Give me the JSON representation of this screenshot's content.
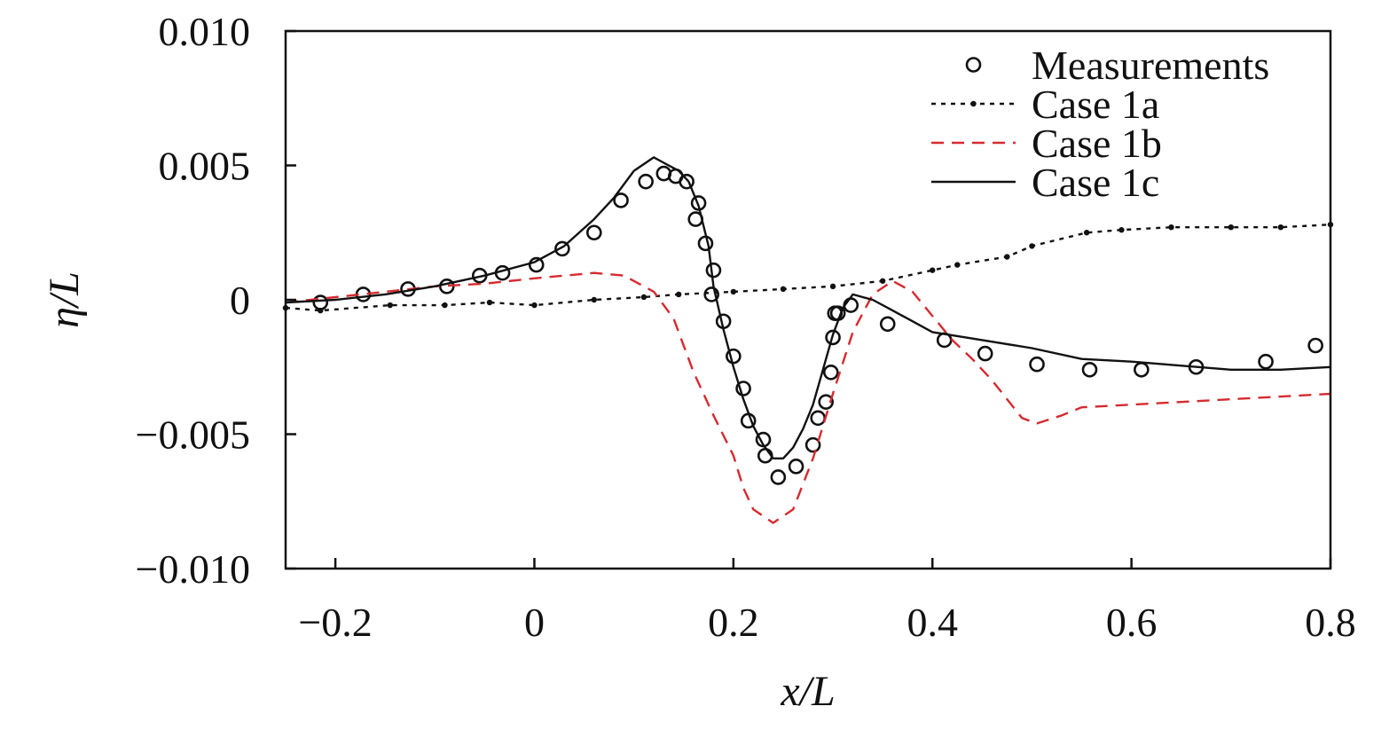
{
  "chart_data": {
    "type": "line",
    "title": "",
    "xlabel": "x/L",
    "ylabel": "η/L",
    "xlim": [
      -0.25,
      0.8
    ],
    "ylim": [
      -0.01,
      0.01
    ],
    "x_ticks": [
      -0.2,
      0,
      0.2,
      0.4,
      0.6,
      0.8
    ],
    "x_tick_labels": [
      "−0.2",
      "0",
      "0.2",
      "0.4",
      "0.6",
      "0.8"
    ],
    "y_ticks": [
      0.01,
      0.005,
      0,
      -0.005,
      -0.01
    ],
    "y_tick_labels": [
      "0.010",
      "0.005",
      "0",
      "−0.005",
      "−0.010"
    ],
    "grid": false,
    "legend_position": "top-right",
    "series": [
      {
        "name": "Measurements",
        "style": "markers",
        "color": "#111111",
        "x": [
          -0.215,
          -0.172,
          -0.127,
          -0.088,
          -0.055,
          -0.032,
          0.002,
          0.028,
          0.06,
          0.087,
          0.112,
          0.13,
          0.142,
          0.153,
          0.162,
          0.165,
          0.172,
          0.178,
          0.18,
          0.19,
          0.2,
          0.21,
          0.215,
          0.23,
          0.232,
          0.245,
          0.263,
          0.28,
          0.285,
          0.293,
          0.298,
          0.3,
          0.302,
          0.305,
          0.318,
          0.355,
          0.412,
          0.453,
          0.505,
          0.558,
          0.61,
          0.665,
          0.735,
          0.785
        ],
        "y": [
          -0.0001,
          0.0002,
          0.0004,
          0.0005,
          0.0009,
          0.001,
          0.0013,
          0.0019,
          0.0025,
          0.0037,
          0.0044,
          0.0047,
          0.0046,
          0.0044,
          0.003,
          0.0036,
          0.0021,
          0.0002,
          0.0011,
          -0.0008,
          -0.0021,
          -0.0033,
          -0.0045,
          -0.0052,
          -0.0058,
          -0.0066,
          -0.0062,
          -0.0054,
          -0.0044,
          -0.0038,
          -0.0027,
          -0.0014,
          -0.0005,
          -0.0005,
          -0.0002,
          -0.0009,
          -0.0015,
          -0.002,
          -0.0024,
          -0.0026,
          -0.0026,
          -0.0025,
          -0.0023,
          -0.0017
        ]
      },
      {
        "name": "Case 1a",
        "style": "dotted",
        "color": "#111111",
        "x": [
          -0.25,
          -0.215,
          -0.145,
          -0.09,
          -0.045,
          0,
          0.06,
          0.11,
          0.145,
          0.2,
          0.25,
          0.3,
          0.35,
          0.4,
          0.425,
          0.475,
          0.5,
          0.555,
          0.59,
          0.64,
          0.7,
          0.75,
          0.8
        ],
        "y": [
          -0.0003,
          -0.0004,
          -0.0002,
          -0.0002,
          -0.0001,
          -0.0002,
          0,
          0.0001,
          0.0002,
          0.0003,
          0.0004,
          0.0005,
          0.0007,
          0.0011,
          0.0013,
          0.0016,
          0.002,
          0.0025,
          0.0026,
          0.0027,
          0.0027,
          0.0027,
          0.0028
        ]
      },
      {
        "name": "Case 1b",
        "style": "dashed",
        "color": "#d62a2f",
        "x": [
          -0.25,
          -0.2,
          -0.15,
          -0.1,
          -0.05,
          0,
          0.03,
          0.06,
          0.09,
          0.12,
          0.14,
          0.16,
          0.18,
          0.2,
          0.21,
          0.22,
          0.24,
          0.26,
          0.28,
          0.3,
          0.32,
          0.34,
          0.36,
          0.38,
          0.4,
          0.42,
          0.44,
          0.46,
          0.475,
          0.49,
          0.505,
          0.53,
          0.55,
          0.6,
          0.7,
          0.8
        ],
        "y": [
          -0.0001,
          0.0001,
          0.0003,
          0.0005,
          0.0006,
          0.0008,
          0.0009,
          0.001,
          0.0009,
          0.0003,
          -0.0007,
          -0.0027,
          -0.0043,
          -0.0058,
          -0.007,
          -0.0078,
          -0.0083,
          -0.0078,
          -0.0059,
          -0.0035,
          -0.0012,
          0.0002,
          0.0007,
          0.0003,
          -0.0006,
          -0.0015,
          -0.0022,
          -0.003,
          -0.0037,
          -0.0044,
          -0.0046,
          -0.0043,
          -0.004,
          -0.0039,
          -0.0037,
          -0.0035
        ]
      },
      {
        "name": "Case 1c",
        "style": "solid",
        "color": "#111111",
        "x": [
          -0.25,
          -0.2,
          -0.15,
          -0.1,
          -0.05,
          0,
          0.03,
          0.06,
          0.08,
          0.1,
          0.12,
          0.13,
          0.145,
          0.155,
          0.165,
          0.175,
          0.18,
          0.19,
          0.2,
          0.21,
          0.22,
          0.23,
          0.24,
          0.25,
          0.26,
          0.27,
          0.28,
          0.29,
          0.3,
          0.31,
          0.32,
          0.33,
          0.34,
          0.36,
          0.38,
          0.4,
          0.45,
          0.5,
          0.55,
          0.6,
          0.7,
          0.75,
          0.8
        ],
        "y": [
          -0.0001,
          0,
          0.0002,
          0.0005,
          0.0009,
          0.0014,
          0.002,
          0.003,
          0.0038,
          0.0048,
          0.0053,
          0.0051,
          0.0048,
          0.0044,
          0.0035,
          0.002,
          0.0005,
          -0.0011,
          -0.0025,
          -0.0037,
          -0.0047,
          -0.0054,
          -0.0059,
          -0.0059,
          -0.0055,
          -0.0048,
          -0.0039,
          -0.0026,
          -0.0013,
          -0.0003,
          0.0002,
          0.0001,
          0,
          -0.0004,
          -0.0008,
          -0.0012,
          -0.0015,
          -0.0018,
          -0.0022,
          -0.0023,
          -0.0026,
          -0.0026,
          -0.0025
        ]
      }
    ]
  }
}
